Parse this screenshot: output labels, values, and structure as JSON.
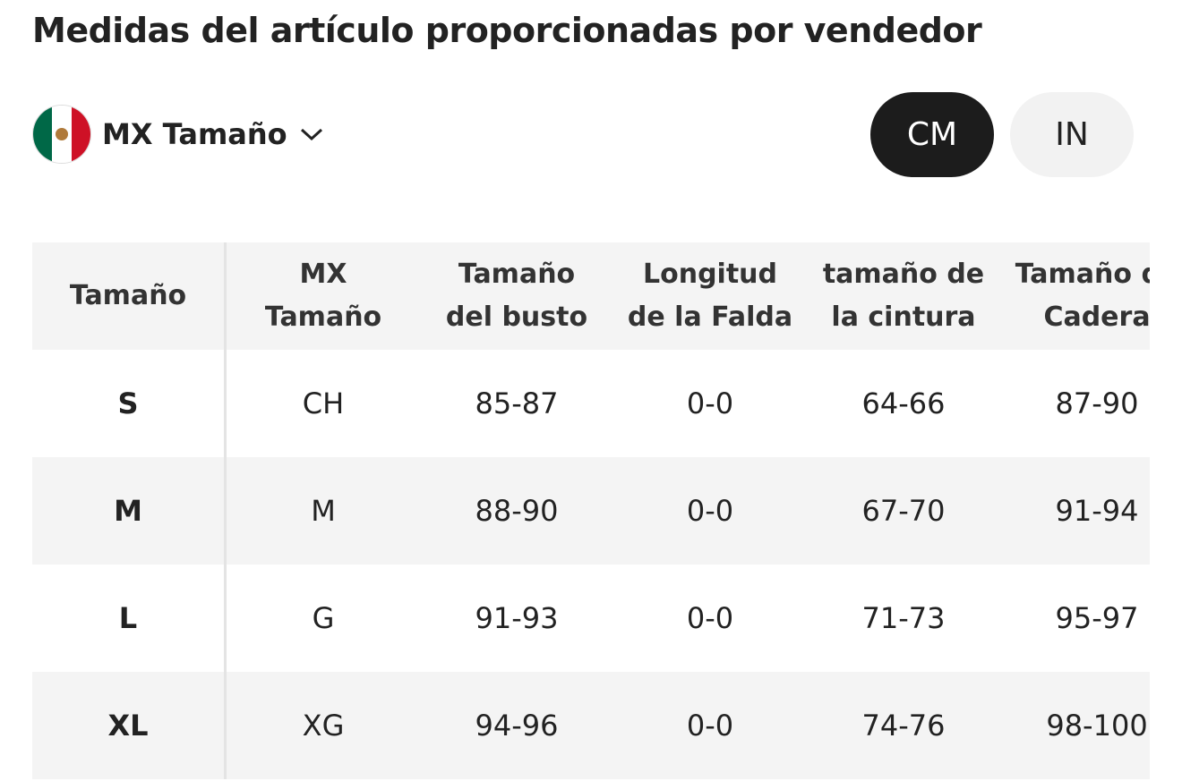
{
  "header": {
    "title": "Medidas del artículo proporcionadas por vendedor"
  },
  "size_selector": {
    "label": "MX Tamaño"
  },
  "unit_toggle": {
    "options": [
      "CM",
      "IN"
    ]
  },
  "table": {
    "headers": [
      [
        "Tamaño"
      ],
      [
        "MX",
        "Tamaño"
      ],
      [
        "Tamaño",
        "del busto"
      ],
      [
        "Longitud",
        "de la Falda"
      ],
      [
        "tamaño de",
        "la cintura"
      ],
      [
        "Tamaño de",
        "Cadera"
      ]
    ],
    "rows": [
      [
        "S",
        "CH",
        "85-87",
        "0-0",
        "64-66",
        "87-90"
      ],
      [
        "M",
        "M",
        "88-90",
        "0-0",
        "67-70",
        "91-94"
      ],
      [
        "L",
        "G",
        "91-93",
        "0-0",
        "71-73",
        "95-97"
      ],
      [
        "XL",
        "XG",
        "94-96",
        "0-0",
        "74-76",
        "98-100"
      ]
    ]
  }
}
